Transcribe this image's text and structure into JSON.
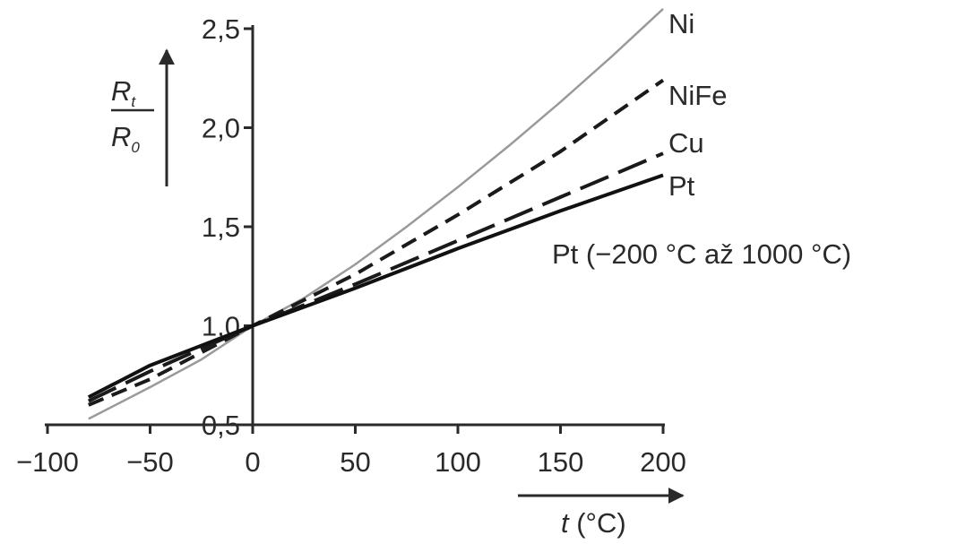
{
  "chart_data": {
    "type": "line",
    "x_ticks": [
      "−100",
      "−50",
      "0",
      "50",
      "100",
      "150",
      "200"
    ],
    "y_ticks": [
      "0,5",
      "1,0",
      "1,5",
      "2,0",
      "2,5"
    ],
    "xlim": [
      -100,
      200
    ],
    "ylim": [
      0.5,
      2.5
    ],
    "xlabel": {
      "var": "t",
      "unit": " (°C)"
    },
    "ylabel": {
      "num": "R",
      "num_sub": "t",
      "den": "R",
      "den_sub": "0"
    },
    "annotation": "Pt (−200 °C až 1000 °C)",
    "series": [
      {
        "name": "Ni",
        "color": "#9a9a9a",
        "style": "solid",
        "width": 2.5,
        "x": [
          -80,
          -50,
          -25,
          0,
          25,
          50,
          75,
          100,
          125,
          150,
          175,
          200
        ],
        "y": [
          0.53,
          0.69,
          0.83,
          1.0,
          1.14,
          1.31,
          1.5,
          1.7,
          1.91,
          2.13,
          2.36,
          2.6
        ]
      },
      {
        "name": "NiFe",
        "color": "#1a1a1a",
        "style": "dash",
        "width": 4,
        "x": [
          -80,
          -50,
          0,
          50,
          100,
          150,
          200
        ],
        "y": [
          0.6,
          0.73,
          1.0,
          1.26,
          1.56,
          1.88,
          2.24
        ]
      },
      {
        "name": "Cu",
        "color": "#1a1a1a",
        "style": "longdash",
        "width": 4,
        "x": [
          -80,
          -50,
          0,
          50,
          100,
          150,
          200
        ],
        "y": [
          0.62,
          0.77,
          1.0,
          1.21,
          1.43,
          1.65,
          1.87
        ]
      },
      {
        "name": "Pt",
        "color": "#111111",
        "style": "solid",
        "width": 4,
        "x": [
          -80,
          -50,
          0,
          50,
          100,
          150,
          200
        ],
        "y": [
          0.64,
          0.8,
          1.0,
          1.19,
          1.39,
          1.58,
          1.76
        ]
      }
    ]
  }
}
